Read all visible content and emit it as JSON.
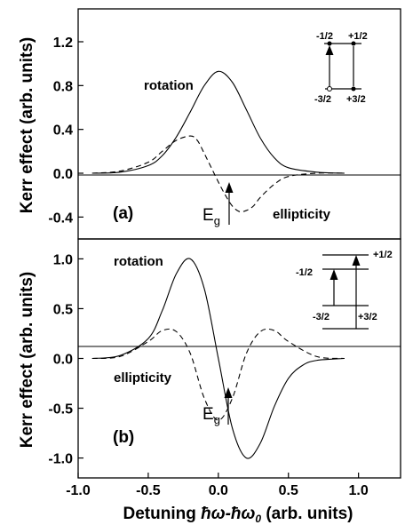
{
  "chart_data": [
    {
      "type": "line",
      "panel_label": "(a)",
      "ylabel": "Kerr effect (arb. units)",
      "xlim": [
        -1.0,
        1.3
      ],
      "ylim": [
        -0.6,
        1.5
      ],
      "yticks": [
        "-0.4",
        "0.0",
        "0.4",
        "0.8",
        "1.2"
      ],
      "ytick_values": [
        -0.4,
        0.0,
        0.4,
        0.8,
        1.2
      ],
      "series": [
        {
          "name": "rotation",
          "style": "solid",
          "x": [
            -0.9,
            -0.7,
            -0.5,
            -0.4,
            -0.3,
            -0.2,
            -0.1,
            0.0,
            0.1,
            0.2,
            0.3,
            0.4,
            0.5,
            0.7,
            0.9
          ],
          "y": [
            0.0,
            0.01,
            0.07,
            0.16,
            0.33,
            0.56,
            0.8,
            0.93,
            0.83,
            0.58,
            0.32,
            0.14,
            0.05,
            0.01,
            0.0
          ]
        },
        {
          "name": "ellipticity",
          "style": "dashed",
          "x": [
            -0.9,
            -0.7,
            -0.5,
            -0.4,
            -0.3,
            -0.2,
            -0.15,
            -0.1,
            -0.05,
            0.0,
            0.05,
            0.1,
            0.15,
            0.2,
            0.25,
            0.3,
            0.4,
            0.5,
            0.7,
            0.9
          ],
          "y": [
            0.0,
            0.02,
            0.1,
            0.2,
            0.3,
            0.34,
            0.3,
            0.18,
            0.05,
            -0.08,
            -0.2,
            -0.3,
            -0.35,
            -0.34,
            -0.3,
            -0.22,
            -0.1,
            -0.03,
            0.0,
            0.0
          ]
        }
      ],
      "annotations": {
        "rotation": "rotation",
        "ellipticity": "ellipticity",
        "gap": "E",
        "gap_sub": "g"
      },
      "levels": {
        "top_left": "-1/2",
        "top_right": "+1/2",
        "bottom_left": "-3/2",
        "bottom_right": "+3/2"
      }
    },
    {
      "type": "line",
      "panel_label": "(b)",
      "ylabel": "Kerr effect (arb. units)",
      "xlabel_prefix": "Detuning ",
      "xlabel_symbol": "ħω-ħω",
      "xlabel_sub": "0",
      "xlabel_suffix": " (arb. units)",
      "xlim": [
        -1.0,
        1.3
      ],
      "ylim": [
        -1.2,
        1.2
      ],
      "xticks": [
        "-1.0",
        "-0.5",
        "0.0",
        "0.5",
        "1.0"
      ],
      "xtick_values": [
        -1.0,
        -0.5,
        0.0,
        0.5,
        1.0
      ],
      "yticks": [
        "-1.0",
        "-0.5",
        "0.0",
        "0.5",
        "1.0"
      ],
      "ytick_values": [
        -1.0,
        -0.5,
        0.0,
        0.5,
        1.0
      ],
      "series": [
        {
          "name": "rotation",
          "style": "solid",
          "x": [
            -0.9,
            -0.7,
            -0.5,
            -0.4,
            -0.3,
            -0.2,
            -0.1,
            0.0,
            0.1,
            0.2,
            0.3,
            0.4,
            0.5,
            0.6,
            0.7,
            0.9
          ],
          "y": [
            0.0,
            0.03,
            0.2,
            0.48,
            0.85,
            1.0,
            0.7,
            0.0,
            -0.7,
            -1.0,
            -0.85,
            -0.48,
            -0.2,
            -0.07,
            -0.02,
            0.0
          ]
        },
        {
          "name": "ellipticity",
          "style": "dashed",
          "x": [
            -0.9,
            -0.7,
            -0.5,
            -0.4,
            -0.3,
            -0.2,
            -0.1,
            0.0,
            0.1,
            0.2,
            0.3,
            0.4,
            0.5,
            0.7,
            0.9
          ],
          "y": [
            0.0,
            0.02,
            0.17,
            0.28,
            0.27,
            0.05,
            -0.4,
            -0.62,
            -0.4,
            0.05,
            0.27,
            0.28,
            0.17,
            0.02,
            0.0
          ]
        }
      ],
      "annotations": {
        "rotation": "rotation",
        "ellipticity": "ellipticity",
        "gap": "E",
        "gap_sub": "g"
      },
      "levels": {
        "top_left": "-1/2",
        "top_right": "+1/2",
        "bottom_left": "-3/2",
        "bottom_right": "+3/2"
      }
    }
  ]
}
